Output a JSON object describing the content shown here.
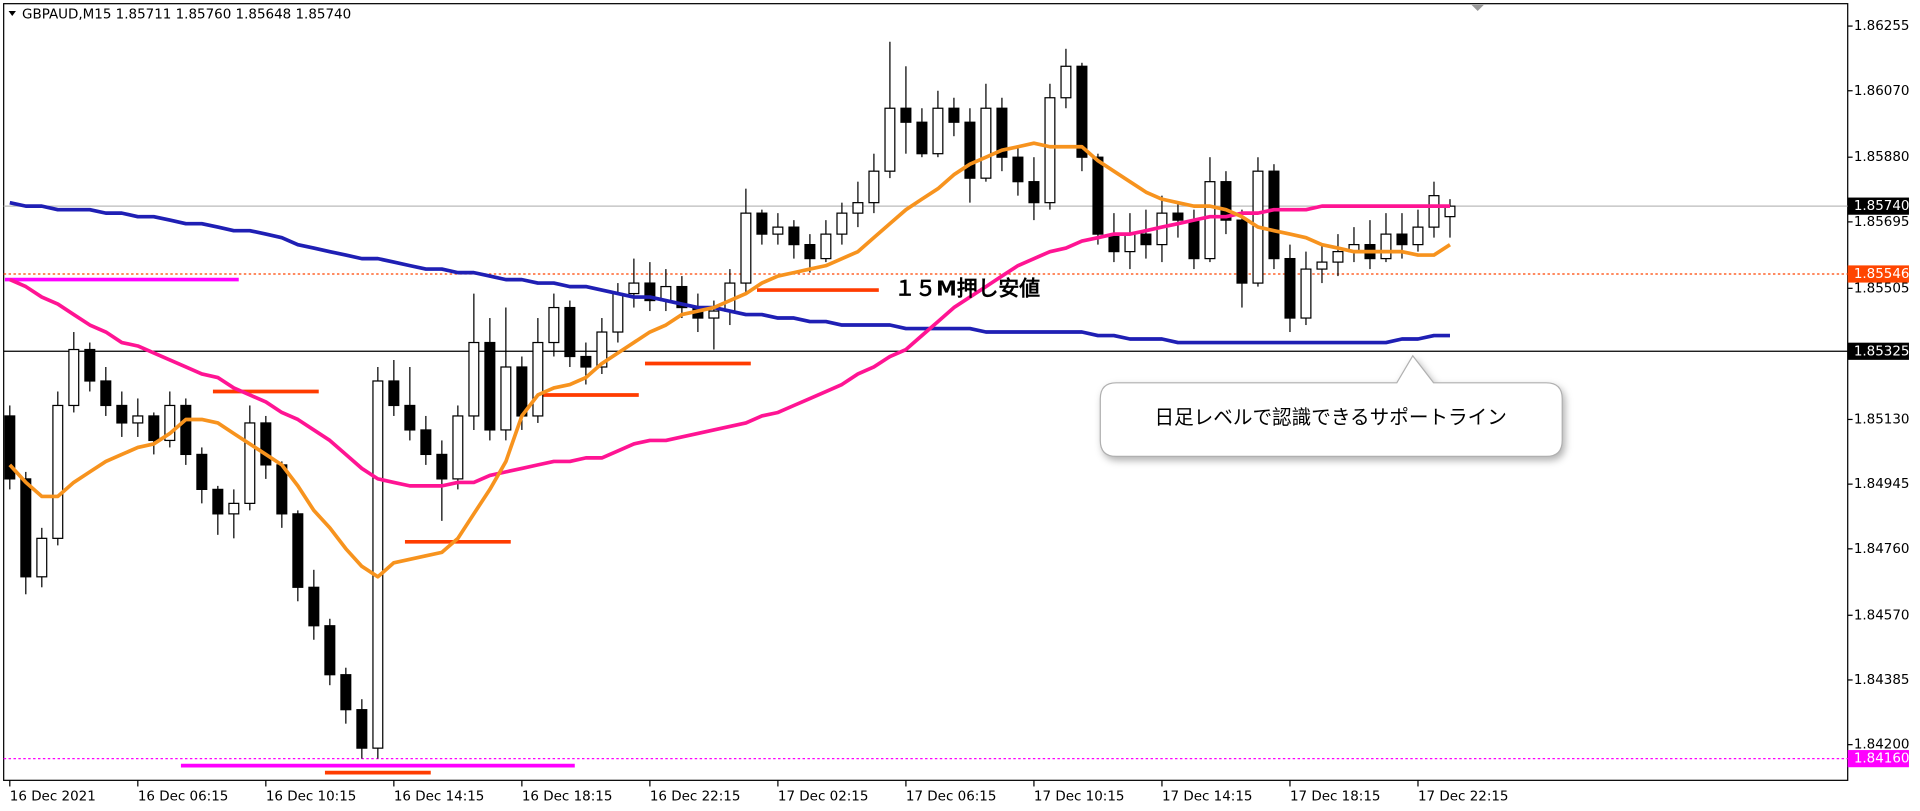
{
  "chart_data": {
    "type": "candlestick",
    "title": "GBPAUD,M15  1.85711 1.85760 1.85648 1.85740",
    "categories": [
      "16 Dec 2021",
      null,
      null,
      null,
      null,
      null,
      null,
      null,
      "16 Dec 06:15",
      null,
      null,
      null,
      null,
      null,
      null,
      null,
      "16 Dec 10:15",
      null,
      null,
      null,
      null,
      null,
      null,
      null,
      "16 Dec 14:15",
      null,
      null,
      null,
      null,
      null,
      null,
      null,
      "16 Dec 18:15",
      null,
      null,
      null,
      null,
      null,
      null,
      null,
      "16 Dec 22:15",
      null,
      null,
      null,
      null,
      null,
      null,
      null,
      "17 Dec 02:15",
      null,
      null,
      null,
      null,
      null,
      null,
      null,
      "17 Dec 06:15",
      null,
      null,
      null,
      null,
      null,
      null,
      null,
      "17 Dec 10:15",
      null,
      null,
      null,
      null,
      null,
      null,
      null,
      "17 Dec 14:15",
      null,
      null,
      null,
      null,
      null,
      null,
      null,
      "17 Dec 18:15",
      null,
      null,
      null,
      null,
      null,
      null,
      null,
      "17 Dec 22:15",
      null,
      null
    ],
    "ohlc": [
      [
        1.8514,
        1.8517,
        1.8493,
        1.8496
      ],
      [
        1.8496,
        1.8498,
        1.8463,
        1.8468
      ],
      [
        1.8468,
        1.8482,
        1.8465,
        1.8479
      ],
      [
        1.8479,
        1.8521,
        1.8477,
        1.8517
      ],
      [
        1.8517,
        1.8538,
        1.8515,
        1.8533
      ],
      [
        1.8533,
        1.8535,
        1.8521,
        1.8524
      ],
      [
        1.8524,
        1.8528,
        1.8514,
        1.8517
      ],
      [
        1.8517,
        1.8521,
        1.8508,
        1.8512
      ],
      [
        1.8512,
        1.8519,
        1.8508,
        1.8514
      ],
      [
        1.8514,
        1.8515,
        1.8503,
        1.8507
      ],
      [
        1.8507,
        1.8521,
        1.8505,
        1.8517
      ],
      [
        1.8517,
        1.8519,
        1.85,
        1.8503
      ],
      [
        1.8503,
        1.8505,
        1.8489,
        1.8493
      ],
      [
        1.8493,
        1.8494,
        1.848,
        1.8486
      ],
      [
        1.8486,
        1.8493,
        1.8479,
        1.8489
      ],
      [
        1.8489,
        1.8517,
        1.8487,
        1.8512
      ],
      [
        1.8512,
        1.8514,
        1.8496,
        1.85
      ],
      [
        1.85,
        1.8501,
        1.8482,
        1.8486
      ],
      [
        1.8486,
        1.8487,
        1.8461,
        1.8465
      ],
      [
        1.8465,
        1.847,
        1.845,
        1.8454
      ],
      [
        1.8454,
        1.8456,
        1.8437,
        1.844
      ],
      [
        1.844,
        1.8442,
        1.8426,
        1.843
      ],
      [
        1.843,
        1.8433,
        1.8416,
        1.8419
      ],
      [
        1.8419,
        1.8528,
        1.8416,
        1.8524
      ],
      [
        1.8524,
        1.853,
        1.8514,
        1.8517
      ],
      [
        1.8517,
        1.8528,
        1.8507,
        1.851
      ],
      [
        1.851,
        1.8514,
        1.85,
        1.8503
      ],
      [
        1.8503,
        1.8507,
        1.8484,
        1.8496
      ],
      [
        1.8496,
        1.8517,
        1.8493,
        1.8514
      ],
      [
        1.8514,
        1.8549,
        1.851,
        1.8535
      ],
      [
        1.8535,
        1.8542,
        1.8507,
        1.851
      ],
      [
        1.851,
        1.8545,
        1.8507,
        1.8528
      ],
      [
        1.8528,
        1.8531,
        1.851,
        1.8514
      ],
      [
        1.8514,
        1.8542,
        1.8512,
        1.8535
      ],
      [
        1.8535,
        1.8549,
        1.8531,
        1.8545
      ],
      [
        1.8545,
        1.8547,
        1.8528,
        1.8531
      ],
      [
        1.8531,
        1.8535,
        1.8523,
        1.8528
      ],
      [
        1.8528,
        1.8542,
        1.8526,
        1.8538
      ],
      [
        1.8538,
        1.8552,
        1.8535,
        1.8549
      ],
      [
        1.8549,
        1.8559,
        1.8545,
        1.8552
      ],
      [
        1.8552,
        1.8558,
        1.8544,
        1.8547
      ],
      [
        1.8547,
        1.8556,
        1.8544,
        1.8551
      ],
      [
        1.8551,
        1.8554,
        1.8542,
        1.8545
      ],
      [
        1.8545,
        1.8549,
        1.8538,
        1.8542
      ],
      [
        1.8542,
        1.8547,
        1.8533,
        1.8544
      ],
      [
        1.8544,
        1.8556,
        1.854,
        1.8552
      ],
      [
        1.8552,
        1.8579,
        1.8549,
        1.8572
      ],
      [
        1.8572,
        1.8573,
        1.8563,
        1.8566
      ],
      [
        1.8566,
        1.8572,
        1.8563,
        1.8568
      ],
      [
        1.8568,
        1.857,
        1.8559,
        1.8563
      ],
      [
        1.8563,
        1.8566,
        1.8555,
        1.8559
      ],
      [
        1.8559,
        1.857,
        1.8558,
        1.8566
      ],
      [
        1.8566,
        1.8575,
        1.8563,
        1.8572
      ],
      [
        1.8572,
        1.8581,
        1.8568,
        1.8575
      ],
      [
        1.8575,
        1.8589,
        1.8572,
        1.8584
      ],
      [
        1.8584,
        1.8621,
        1.8582,
        1.8602
      ],
      [
        1.8602,
        1.8614,
        1.8589,
        1.8598
      ],
      [
        1.8598,
        1.8602,
        1.8588,
        1.8589
      ],
      [
        1.8589,
        1.8607,
        1.8588,
        1.8602
      ],
      [
        1.8602,
        1.8605,
        1.8594,
        1.8598
      ],
      [
        1.8598,
        1.8602,
        1.8575,
        1.8582
      ],
      [
        1.8582,
        1.8609,
        1.8581,
        1.8602
      ],
      [
        1.8602,
        1.8605,
        1.8584,
        1.8588
      ],
      [
        1.8588,
        1.8591,
        1.8577,
        1.8581
      ],
      [
        1.8581,
        1.8588,
        1.857,
        1.8575
      ],
      [
        1.8575,
        1.8609,
        1.8573,
        1.8605
      ],
      [
        1.8605,
        1.8619,
        1.8602,
        1.8614
      ],
      [
        1.8614,
        1.8615,
        1.8584,
        1.8588
      ],
      [
        1.8588,
        1.8589,
        1.8563,
        1.8566
      ],
      [
        1.8566,
        1.8572,
        1.8558,
        1.8561
      ],
      [
        1.8561,
        1.8572,
        1.8556,
        1.8566
      ],
      [
        1.8566,
        1.8573,
        1.8559,
        1.8563
      ],
      [
        1.8563,
        1.8577,
        1.8558,
        1.8572
      ],
      [
        1.8572,
        1.8575,
        1.8565,
        1.857
      ],
      [
        1.857,
        1.8573,
        1.8556,
        1.8559
      ],
      [
        1.8559,
        1.8588,
        1.8558,
        1.8581
      ],
      [
        1.8581,
        1.8584,
        1.8566,
        1.857
      ],
      [
        1.857,
        1.8573,
        1.8545,
        1.8552
      ],
      [
        1.8552,
        1.8588,
        1.8551,
        1.8584
      ],
      [
        1.8584,
        1.8586,
        1.8556,
        1.8559
      ],
      [
        1.8559,
        1.8563,
        1.8538,
        1.8542
      ],
      [
        1.8542,
        1.8561,
        1.854,
        1.8556
      ],
      [
        1.8556,
        1.8563,
        1.8552,
        1.8558
      ],
      [
        1.8558,
        1.8566,
        1.8554,
        1.8561
      ],
      [
        1.8561,
        1.8568,
        1.8558,
        1.8563
      ],
      [
        1.8563,
        1.857,
        1.8556,
        1.8559
      ],
      [
        1.8559,
        1.8572,
        1.8558,
        1.8566
      ],
      [
        1.8566,
        1.8572,
        1.8559,
        1.8563
      ],
      [
        1.8563,
        1.8573,
        1.8561,
        1.8568
      ],
      [
        1.8568,
        1.8581,
        1.8565,
        1.8577
      ],
      [
        1.8571,
        1.8576,
        1.8565,
        1.8574
      ]
    ],
    "overlays": [
      {
        "color": "#1f1fb4",
        "values": [
          1.8575,
          1.8574,
          1.8574,
          1.8573,
          1.8573,
          1.8573,
          1.8572,
          1.8572,
          1.8571,
          1.8571,
          1.857,
          1.8569,
          1.8569,
          1.8568,
          1.8567,
          1.8567,
          1.8566,
          1.8565,
          1.8563,
          1.8562,
          1.8561,
          1.856,
          1.8559,
          1.8559,
          1.8558,
          1.8557,
          1.8556,
          1.8556,
          1.8555,
          1.8555,
          1.8554,
          1.8553,
          1.8553,
          1.8552,
          1.8552,
          1.8551,
          1.8551,
          1.855,
          1.8549,
          1.8548,
          1.8548,
          1.8547,
          1.8546,
          1.8545,
          1.8545,
          1.8544,
          1.8543,
          1.8543,
          1.8542,
          1.8542,
          1.8541,
          1.8541,
          1.854,
          1.854,
          1.854,
          1.854,
          1.8539,
          1.8539,
          1.8539,
          1.8539,
          1.8539,
          1.8538,
          1.8538,
          1.8538,
          1.8538,
          1.8538,
          1.8538,
          1.8538,
          1.8537,
          1.8537,
          1.8536,
          1.8536,
          1.8536,
          1.8535,
          1.8535,
          1.8535,
          1.8535,
          1.8535,
          1.8535,
          1.8535,
          1.8535,
          1.8535,
          1.8535,
          1.8535,
          1.8535,
          1.8535,
          1.8535,
          1.8536,
          1.8536,
          1.8537,
          1.8537
        ]
      },
      {
        "color": "#ff1493",
        "values": [
          1.8553,
          1.8551,
          1.8548,
          1.8546,
          1.8543,
          1.854,
          1.8538,
          1.8535,
          1.8534,
          1.8532,
          1.853,
          1.8528,
          1.8526,
          1.8525,
          1.8522,
          1.852,
          1.8518,
          1.8515,
          1.8513,
          1.851,
          1.8507,
          1.8503,
          1.8499,
          1.8496,
          1.8495,
          1.8494,
          1.8494,
          1.8494,
          1.8495,
          1.8495,
          1.8497,
          1.8498,
          1.8499,
          1.85,
          1.8501,
          1.8501,
          1.8502,
          1.8502,
          1.8504,
          1.8506,
          1.8507,
          1.8507,
          1.8508,
          1.8509,
          1.851,
          1.8511,
          1.8512,
          1.8514,
          1.8515,
          1.8517,
          1.8519,
          1.8521,
          1.8523,
          1.8526,
          1.8528,
          1.8531,
          1.8533,
          1.8537,
          1.8541,
          1.8545,
          1.8548,
          1.8551,
          1.8554,
          1.8557,
          1.8559,
          1.8561,
          1.8562,
          1.8564,
          1.8565,
          1.8566,
          1.8566,
          1.8567,
          1.8568,
          1.8569,
          1.857,
          1.8571,
          1.8571,
          1.8572,
          1.8572,
          1.8573,
          1.8573,
          1.8573,
          1.8574,
          1.8574,
          1.8574,
          1.8574,
          1.8574,
          1.8574,
          1.8574,
          1.8574,
          1.8574
        ]
      },
      {
        "color": "#f7931e",
        "values": [
          1.85,
          1.8495,
          1.8491,
          1.8491,
          1.8495,
          1.8498,
          1.8501,
          1.8503,
          1.8505,
          1.8506,
          1.8509,
          1.8513,
          1.8513,
          1.8512,
          1.8509,
          1.8506,
          1.8503,
          1.85,
          1.8494,
          1.8487,
          1.8482,
          1.8476,
          1.8471,
          1.8468,
          1.8472,
          1.8473,
          1.8474,
          1.8475,
          1.8479,
          1.8486,
          1.8493,
          1.8501,
          1.8514,
          1.852,
          1.8522,
          1.8523,
          1.8525,
          1.8529,
          1.8532,
          1.8535,
          1.8538,
          1.854,
          1.8543,
          1.8544,
          1.8545,
          1.8547,
          1.8549,
          1.8552,
          1.8554,
          1.8555,
          1.8556,
          1.8557,
          1.8559,
          1.8561,
          1.8565,
          1.8569,
          1.8573,
          1.8576,
          1.8579,
          1.8583,
          1.8586,
          1.8588,
          1.859,
          1.8591,
          1.8592,
          1.8591,
          1.8591,
          1.8591,
          1.8587,
          1.8584,
          1.8581,
          1.8578,
          1.8576,
          1.8575,
          1.8574,
          1.8574,
          1.8573,
          1.8571,
          1.8568,
          1.8567,
          1.8566,
          1.8565,
          1.8563,
          1.8562,
          1.8561,
          1.8561,
          1.8561,
          1.8561,
          1.856,
          1.856,
          1.8563
        ]
      }
    ],
    "levels": [
      {
        "value": 1.8553,
        "color": "#ff00ff",
        "from": 0,
        "to": 14
      },
      {
        "value": 1.8521,
        "color": "#ff3c00",
        "from": 13,
        "to": 19
      },
      {
        "value": 1.8478,
        "color": "#ff3c00",
        "from": 25,
        "to": 31
      },
      {
        "value": 1.852,
        "color": "#ff3c00",
        "from": 33,
        "to": 39
      },
      {
        "value": 1.8529,
        "color": "#ff3c00",
        "from": 40,
        "to": 46
      },
      {
        "value": 1.855,
        "color": "#ff3c00",
        "from": 47,
        "to": 54
      },
      {
        "value": 1.8412,
        "color": "#ff3c00",
        "from": 20,
        "to": 26
      },
      {
        "value": 1.8414,
        "color": "#ff00ff",
        "from": 11,
        "to": 35
      }
    ],
    "price_labels": [
      {
        "value": 1.8574,
        "label": "1.85740",
        "color": "#000000",
        "line_color": "#bbbbbb",
        "dashed": false
      },
      {
        "value": 1.85546,
        "label": "1.85546",
        "color": "#ff4500",
        "line_color": "#ff4500",
        "dashed": true
      },
      {
        "value": 1.85325,
        "label": "1.85325",
        "color": "#000000",
        "line_color": "#000000",
        "dashed": false
      },
      {
        "value": 1.8416,
        "label": "1.84160",
        "color": "#ff00ff",
        "line_color": "#ff00ff",
        "dashed": true
      }
    ],
    "annotations": [
      "１５M押し安値",
      "日足レベルで認識できるサポートライン"
    ],
    "ylim": [
      1.84112,
      1.86312
    ],
    "yticks": [
      1.86255,
      {
        "value": 1.8607,
        "label": "1.86070"
      },
      {
        "value": 1.8588,
        "label": "1.85880"
      },
      1.85695,
      1.85505,
      {
        "value": 1.8513,
        "label": "1.85130"
      },
      1.84945,
      {
        "value": 1.8476,
        "label": "1.84760"
      },
      {
        "value": 1.8457,
        "label": "1.84570"
      },
      1.84385,
      {
        "value": 1.842,
        "label": "1.84200"
      }
    ],
    "up_color": "#ffffff",
    "down_color": "#000000"
  }
}
